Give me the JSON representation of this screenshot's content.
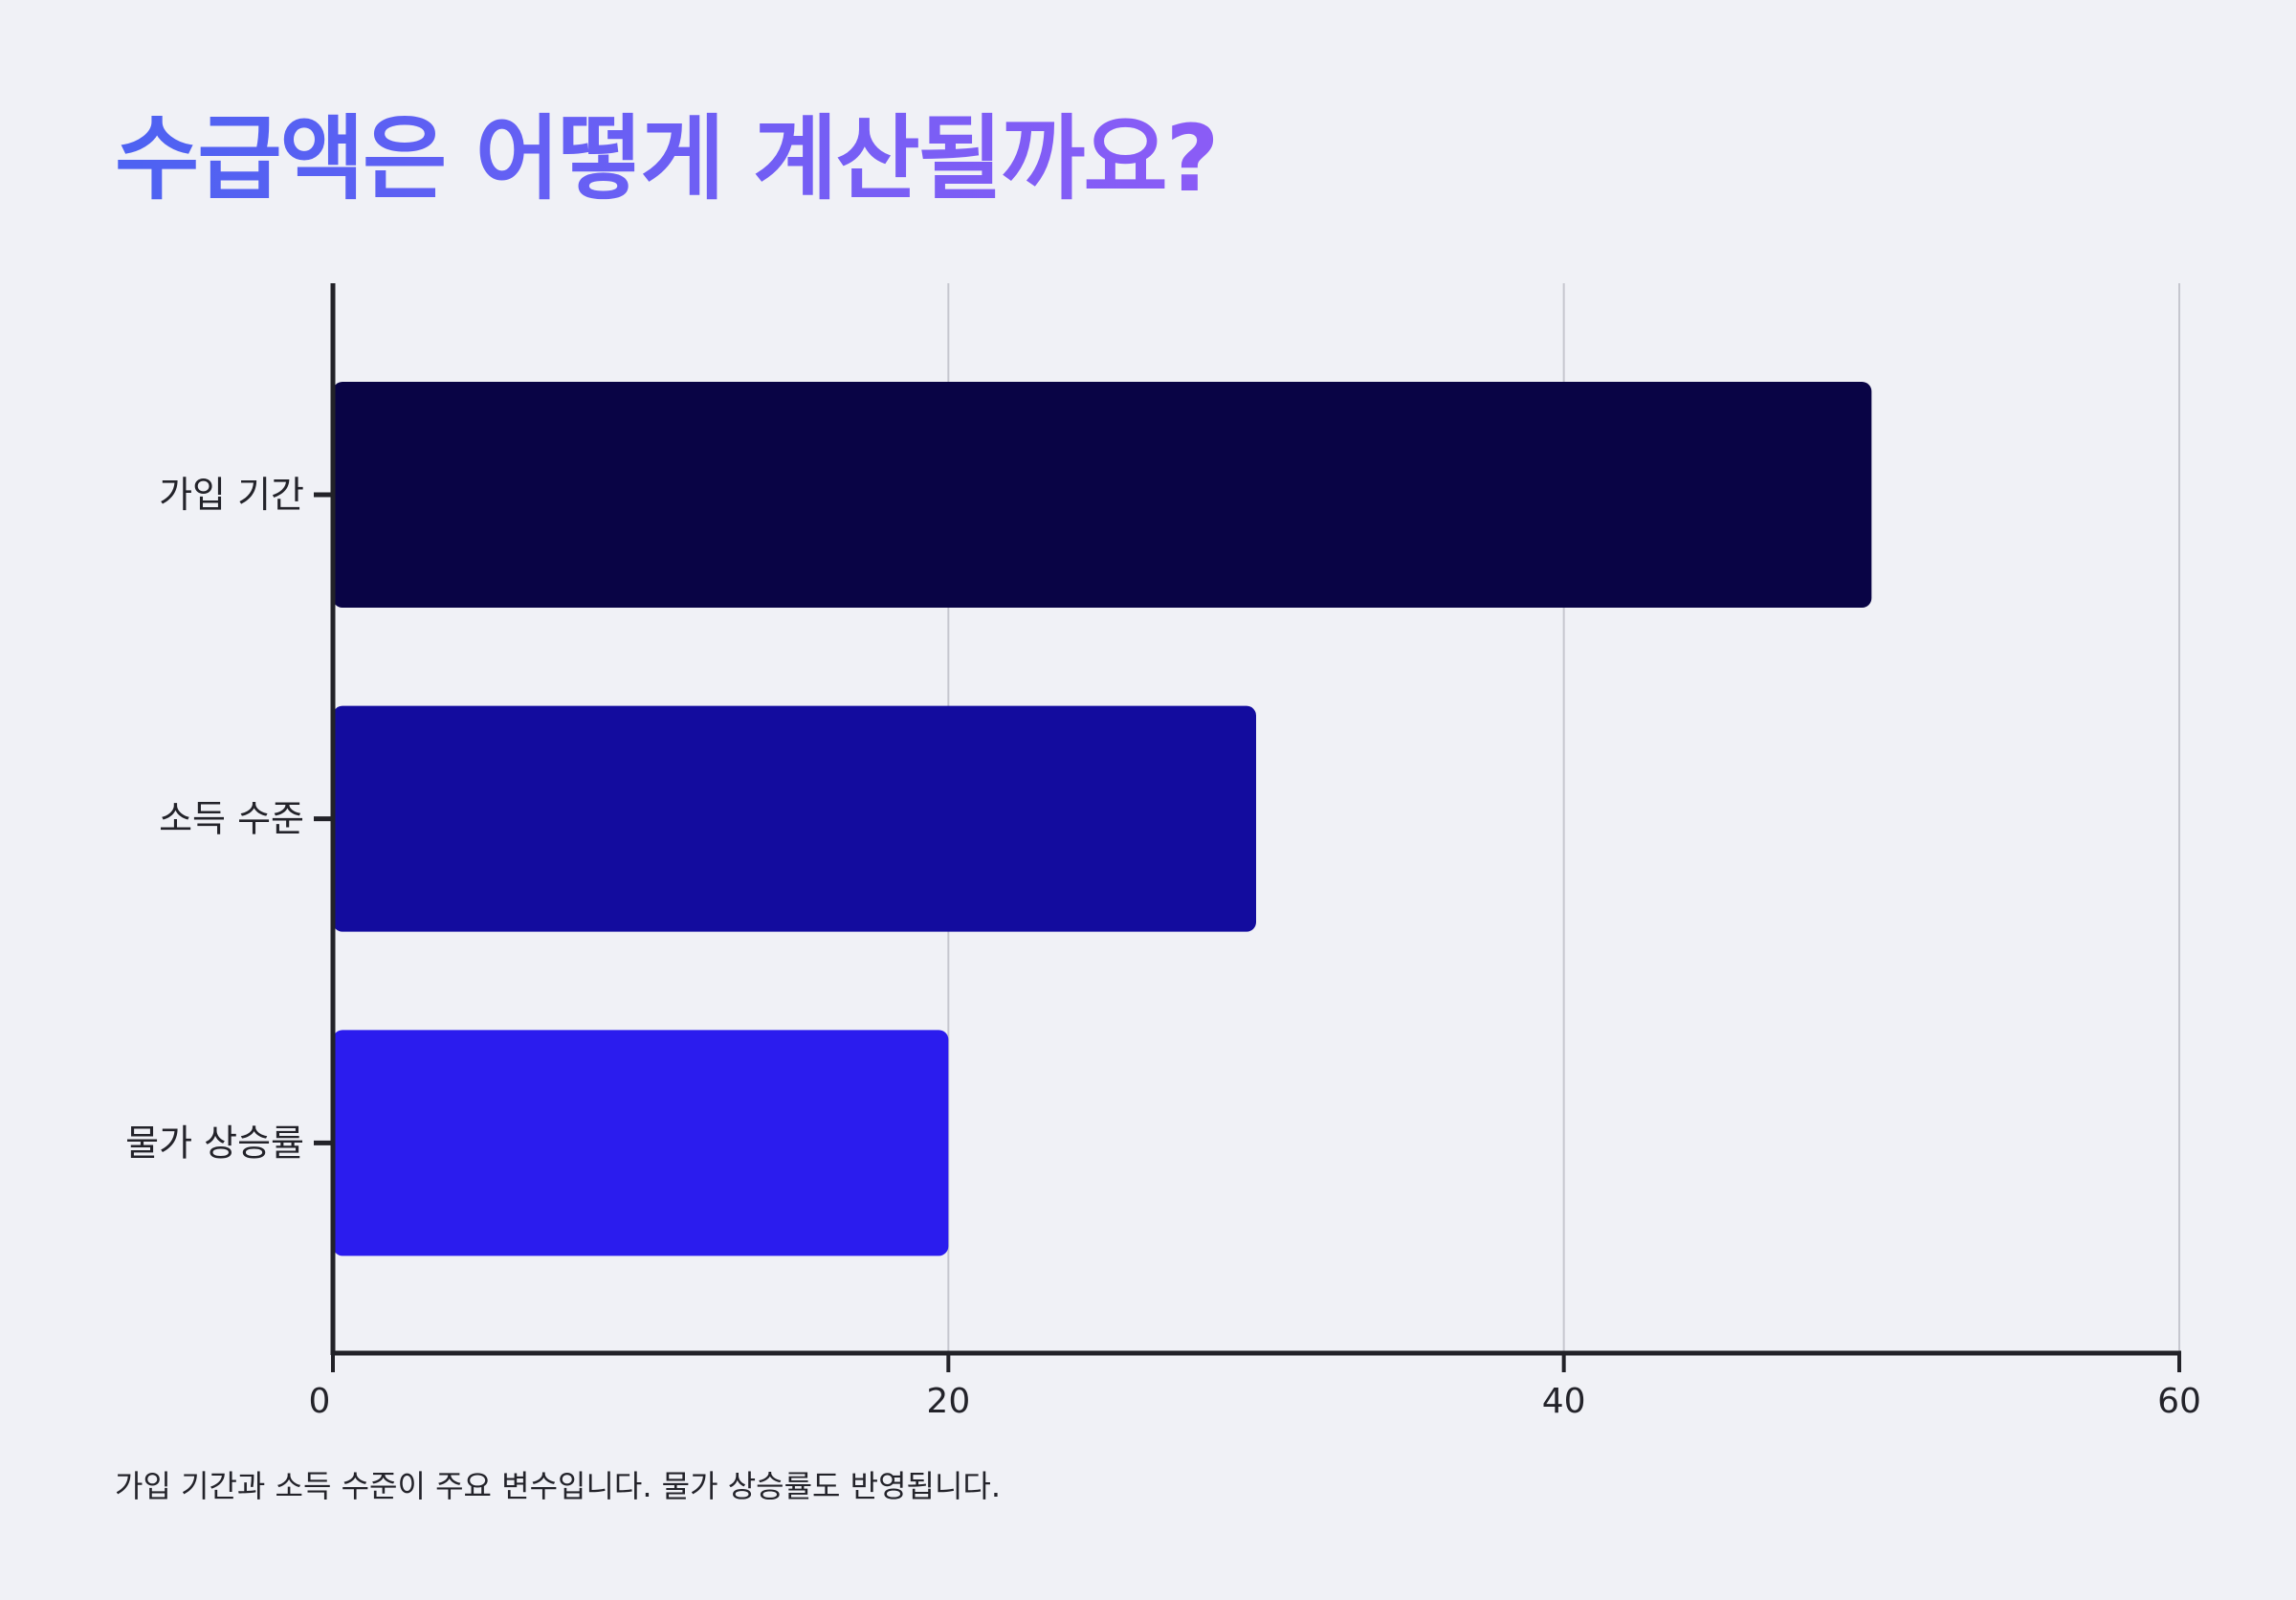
{
  "title": "수급액은 어떻게 계산될까요?",
  "caption": "가입 기간과 소득 수준이 주요 변수입니다. 물가 상승률도 반영됩니다.",
  "chart_data": {
    "type": "bar",
    "orientation": "horizontal",
    "categories": [
      "가입 기간",
      "소득 수준",
      "물가 상승률"
    ],
    "values": [
      50,
      30,
      20
    ],
    "colors": [
      "#090445",
      "#130c9e",
      "#2b1cee"
    ],
    "xlim": [
      0,
      60
    ],
    "xticks": [
      0,
      20,
      40,
      60
    ],
    "grid": true,
    "xlabel": "",
    "ylabel": ""
  }
}
